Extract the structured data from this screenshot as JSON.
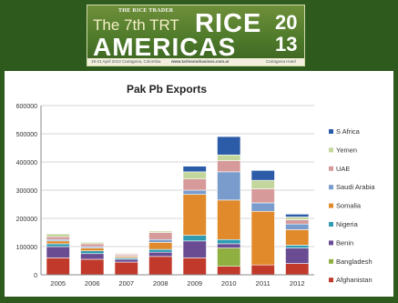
{
  "banner": {
    "brand": "THE RICE TRADER",
    "edition": "The 7th TRT",
    "word1": "RICE",
    "word2": "AMERICAS",
    "year_top": "20",
    "year_bottom": "13",
    "footer_left": "19-21 April 2013 Cartagena, Colombia",
    "footer_url": "www.tarlosmohasinos.com.ar",
    "footer_right": "Cartagena Hotel Caribe"
  },
  "chart_data": {
    "type": "bar",
    "stacked": true,
    "title": "Pak Pb Exports",
    "categories": [
      "2005",
      "2006",
      "2007",
      "2008",
      "2009",
      "2010",
      "2011",
      "2012"
    ],
    "ylim": [
      0,
      600000
    ],
    "yticks": [
      "0",
      "100000",
      "200000",
      "300000",
      "400000",
      "500000",
      "600000"
    ],
    "grid": true,
    "legend_position": "right",
    "series": [
      {
        "name": "Afghanistan",
        "color": "#c0392b",
        "values": [
          60000,
          55000,
          45000,
          65000,
          60000,
          30000,
          35000,
          40000
        ]
      },
      {
        "name": "Bangladesh",
        "color": "#8fb040",
        "values": [
          0,
          0,
          0,
          0,
          0,
          65000,
          0,
          0
        ]
      },
      {
        "name": "Benin",
        "color": "#6a4c93",
        "values": [
          40000,
          20000,
          10000,
          15000,
          60000,
          15000,
          0,
          55000
        ]
      },
      {
        "name": "Nigeria",
        "color": "#2e9bb0",
        "values": [
          10000,
          10000,
          5000,
          10000,
          20000,
          15000,
          0,
          10000
        ]
      },
      {
        "name": "Somalia",
        "color": "#e08a2c",
        "values": [
          10000,
          10000,
          5000,
          25000,
          145000,
          140000,
          190000,
          55000
        ]
      },
      {
        "name": "Saudi Arabia",
        "color": "#7a9ccc",
        "values": [
          5000,
          5000,
          3000,
          10000,
          15000,
          100000,
          30000,
          20000
        ]
      },
      {
        "name": "UAE",
        "color": "#d69a9a",
        "values": [
          10000,
          10000,
          5000,
          25000,
          40000,
          40000,
          50000,
          15000
        ]
      },
      {
        "name": "Yemen",
        "color": "#c3d69b",
        "values": [
          10000,
          5000,
          3000,
          5000,
          25000,
          20000,
          30000,
          10000
        ]
      },
      {
        "name": "S Africa",
        "color": "#2c5ca8",
        "values": [
          0,
          0,
          0,
          0,
          20000,
          65000,
          35000,
          10000
        ]
      }
    ]
  }
}
